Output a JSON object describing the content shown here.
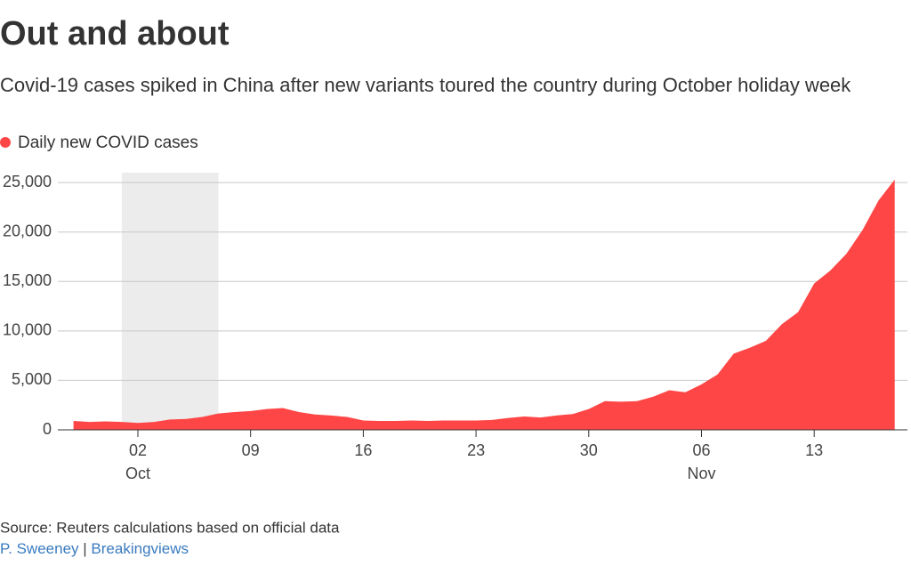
{
  "chart_data": {
    "type": "area",
    "title": "Out and about",
    "subtitle": "Covid-19 cases spiked in China after new variants toured the country during October holiday week",
    "x": [
      "28 Sep",
      "29 Sep",
      "30 Sep",
      "01 Oct",
      "02 Oct",
      "03 Oct",
      "04 Oct",
      "05 Oct",
      "06 Oct",
      "07 Oct",
      "08 Oct",
      "09 Oct",
      "10 Oct",
      "11 Oct",
      "12 Oct",
      "13 Oct",
      "14 Oct",
      "15 Oct",
      "16 Oct",
      "17 Oct",
      "18 Oct",
      "19 Oct",
      "20 Oct",
      "21 Oct",
      "22 Oct",
      "23 Oct",
      "24 Oct",
      "25 Oct",
      "26 Oct",
      "27 Oct",
      "28 Oct",
      "29 Oct",
      "30 Oct",
      "31 Oct",
      "01 Nov",
      "02 Nov",
      "03 Nov",
      "04 Nov",
      "05 Nov",
      "06 Nov",
      "07 Nov",
      "08 Nov",
      "09 Nov",
      "10 Nov",
      "11 Nov",
      "12 Nov",
      "13 Nov",
      "14 Nov",
      "15 Nov",
      "16 Nov",
      "17 Nov",
      "18 Nov"
    ],
    "series": [
      {
        "name": "Daily new COVID cases",
        "color": "#ff4646",
        "values": [
          900,
          800,
          850,
          800,
          700,
          800,
          1050,
          1100,
          1300,
          1650,
          1800,
          1900,
          2100,
          2200,
          1800,
          1550,
          1450,
          1300,
          950,
          900,
          900,
          950,
          900,
          950,
          950,
          950,
          1000,
          1200,
          1350,
          1250,
          1450,
          1600,
          2100,
          2900,
          2850,
          2900,
          3350,
          4000,
          3800,
          4600,
          5600,
          7700,
          8300,
          9000,
          10700,
          11900,
          14800,
          16100,
          17800,
          20200,
          23200,
          25300
        ]
      }
    ],
    "ylim": [
      0,
      26000
    ],
    "yticks": [
      0,
      {
        "value": 5000,
        "label": "5,000"
      },
      {
        "value": 10000,
        "label": "10,000"
      },
      {
        "value": 15000,
        "label": "15,000"
      },
      {
        "value": 20000,
        "label": "20,000"
      },
      {
        "value": 25000,
        "label": "25,000"
      }
    ],
    "xticks": [
      {
        "value": "02 Oct",
        "label": "02"
      },
      {
        "value": "09 Oct",
        "label": "09"
      },
      {
        "value": "16 Oct",
        "label": "16"
      },
      {
        "value": "23 Oct",
        "label": "23"
      },
      {
        "value": "30 Oct",
        "label": "30"
      },
      {
        "value": "06 Nov",
        "label": "06"
      },
      {
        "value": "13 Nov",
        "label": "13"
      }
    ],
    "xtick_months": [
      {
        "value": "02 Oct",
        "label": "Oct"
      },
      {
        "value": "06 Nov",
        "label": "Nov"
      }
    ],
    "shaded_range": [
      "01 Oct",
      "07 Oct"
    ],
    "grid": true,
    "source": "Source: Reuters calculations based on official data",
    "credit": [
      "P. Sweeney",
      "|",
      "Breakingviews"
    ]
  }
}
